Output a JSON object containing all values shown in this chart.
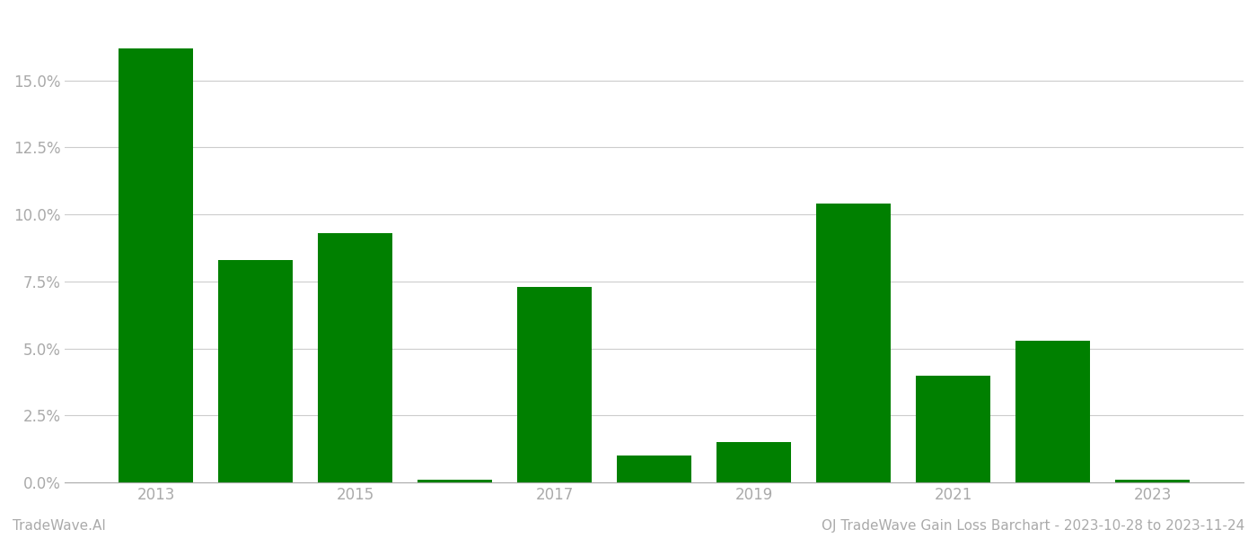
{
  "years": [
    2013,
    2014,
    2015,
    2016,
    2017,
    2018,
    2019,
    2020,
    2021,
    2022,
    2023
  ],
  "values": [
    0.162,
    0.083,
    0.093,
    0.001,
    0.073,
    0.01,
    0.015,
    0.104,
    0.04,
    0.053,
    0.001
  ],
  "bar_color": "#008000",
  "background_color": "#ffffff",
  "grid_color": "#cccccc",
  "axis_color": "#aaaaaa",
  "tick_label_color": "#aaaaaa",
  "ylim": [
    0,
    0.175
  ],
  "yticks": [
    0.0,
    0.025,
    0.05,
    0.075,
    0.1,
    0.125,
    0.15
  ],
  "label_years": [
    2013,
    2015,
    2017,
    2019,
    2021,
    2023
  ],
  "footer_left": "TradeWave.AI",
  "footer_right": "OJ TradeWave Gain Loss Barchart - 2023-10-28 to 2023-11-24",
  "footer_color": "#aaaaaa",
  "footer_fontsize": 11,
  "bar_width": 0.75
}
